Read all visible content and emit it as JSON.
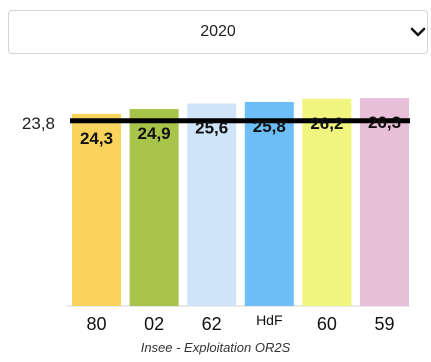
{
  "selector": {
    "value": "2020"
  },
  "source": "Insee - Exploitation OR2S",
  "colors": {
    "reference_line": "#000000",
    "bar_colors": [
      "#f9d35c",
      "#a8c34a",
      "#cfe4f9",
      "#6dbdf6",
      "#eff57f",
      "#e8bfd8"
    ]
  },
  "chart_data": {
    "type": "bar",
    "categories": [
      "80",
      "02",
      "62",
      "HdF",
      "60",
      "59"
    ],
    "values": [
      24.3,
      24.9,
      25.6,
      25.8,
      26.2,
      26.3
    ],
    "value_labels": [
      "24,3",
      "24,9",
      "25,6",
      "25,8",
      "26,2",
      "26,3"
    ],
    "reference": {
      "value": 23.8,
      "label": "23,8"
    },
    "title": "",
    "xlabel": "",
    "ylabel": "",
    "grid": false,
    "legend": "none"
  }
}
